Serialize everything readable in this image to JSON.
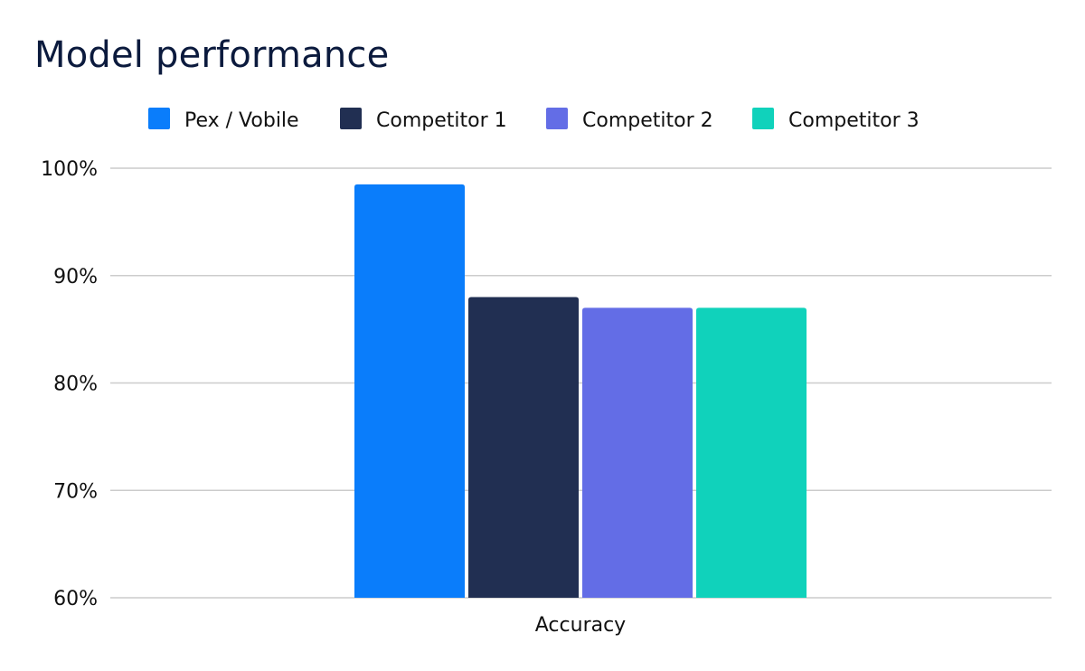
{
  "chart_data": {
    "type": "bar",
    "title": "Model performance",
    "categories": [
      "Accuracy"
    ],
    "series": [
      {
        "name": "Pex / Vobile",
        "values": [
          98.5
        ],
        "color": "#0a7dfb"
      },
      {
        "name": "Competitor 1",
        "values": [
          88.0
        ],
        "color": "#212f52"
      },
      {
        "name": "Competitor 2",
        "values": [
          87.0
        ],
        "color": "#636de6"
      },
      {
        "name": "Competitor 3",
        "values": [
          87.0
        ],
        "color": "#10d2bb"
      }
    ],
    "ylim": [
      60,
      100
    ],
    "yticks": [
      "60%",
      "70%",
      "80%",
      "90%",
      "100%"
    ],
    "ytick_values": [
      60,
      70,
      80,
      90,
      100
    ],
    "xlabel": "",
    "ylabel": "",
    "legend_position": "top",
    "grid": true,
    "grid_color": "#cccccc",
    "title_color": "#0b1a3d"
  }
}
